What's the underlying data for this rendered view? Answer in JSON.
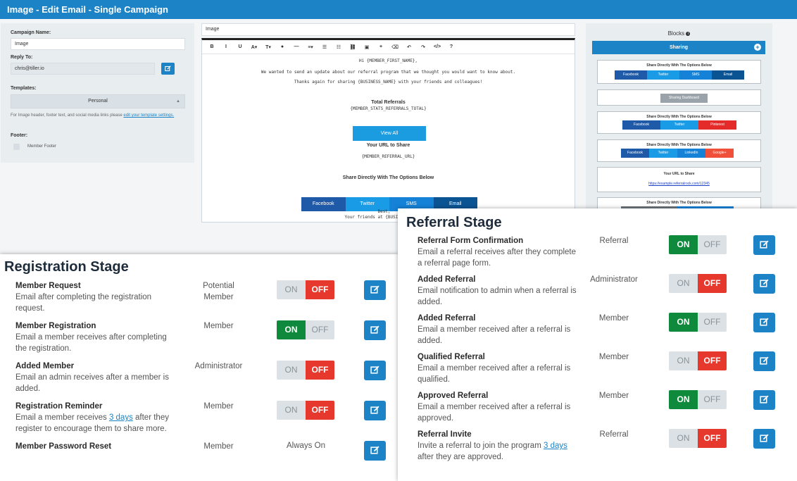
{
  "window": {
    "title": "Image - Edit Email - Single Campaign"
  },
  "settings": {
    "campaign_name_label": "Campaign Name:",
    "campaign_name_value": "Image",
    "reply_to_label": "Reply To:",
    "reply_to_value": "chris@tiller.io",
    "templates_label": "Templates:",
    "template_value": "Personal",
    "help_text": "For Image header, footer text, and social media links please ",
    "help_link": "edit your template settings.",
    "footer_label": "Footer:",
    "footer_checkbox_label": "Member Footer"
  },
  "editor": {
    "subject_value": "Image",
    "toolbar": [
      "B",
      "I",
      "U",
      "A▾",
      "T▾",
      "●",
      "—",
      "≡▾",
      "☰",
      "☷",
      "⛓",
      "▣",
      "+",
      "⌫",
      "↶",
      "↷",
      "</>",
      "?"
    ],
    "greeting": "Hi {MEMBER_FIRST_NAME},",
    "line1": "We wanted to send an update about our referral program that we thought you would want to know about.",
    "line2": "Thanks again for sharing {BUSINESS_NAME} with your friends and colleagues!",
    "total_referrals_title": "Total Referrals",
    "total_referrals_tag": "{MEMBER_STATS_REFERRALS_TOTAL}",
    "view_all_label": "View All",
    "url_title": "Your URL to Share",
    "url_tag": "{MEMBER_REFERRAL_URL}",
    "share_title": "Share Directly With The Options Below",
    "share_buttons": [
      {
        "label": "Facebook",
        "color": "#1f5aa8"
      },
      {
        "label": "Twitter",
        "color": "#1a9be6"
      },
      {
        "label": "SMS",
        "color": "#1582d8"
      },
      {
        "label": "Email",
        "color": "#0b5494"
      }
    ],
    "signoff": "Best,",
    "signature": "Your friends at {BUSINESS_NAME}"
  },
  "blocks": {
    "title": "Blocks",
    "section": "Sharing",
    "items": [
      {
        "title": "Share Directly With The Options Below",
        "buttons": [
          "Facebook",
          "Twitter",
          "SMS",
          "Email"
        ]
      },
      {
        "button": "Sharing Dashboard"
      },
      {
        "title": "Share Directly With The Options Below",
        "buttons": [
          "Facebook",
          "Twitter",
          "Pinterest"
        ]
      },
      {
        "title": "Share Directly With The Options Below",
        "buttons": [
          "Facebook",
          "Twitter",
          "LinkedIn",
          "Google+"
        ]
      },
      {
        "title": "Your URL to Share",
        "link": "https://example.referralrock.com/12345"
      },
      {
        "title": "Share Directly With The Options Below"
      }
    ]
  },
  "registration": {
    "title": "Registration Stage",
    "items": [
      {
        "name": "Member Request",
        "desc": "Email after completing the registration request.",
        "who": "Potential Member",
        "state": "off"
      },
      {
        "name": "Member Registration",
        "desc": "Email a member receives after completing the registration.",
        "who": "Member",
        "state": "on"
      },
      {
        "name": "Added Member",
        "desc": "Email an admin receives after a member is added.",
        "who": "Administrator",
        "state": "off"
      },
      {
        "name": "Registration Reminder",
        "desc_pre": "Email a member receives ",
        "desc_link": "3 days",
        "desc_post": " after they register to encourage them to share more.",
        "who": "Member",
        "state": "off"
      },
      {
        "name": "Member Password Reset",
        "who": "Member",
        "status_text": "Always On"
      }
    ]
  },
  "referral": {
    "title": "Referral Stage",
    "items": [
      {
        "name": "Referral Form Confirmation",
        "desc": "Email a referral receives after they complete a referral page form.",
        "who": "Referral",
        "state": "on"
      },
      {
        "name": "Added Referral",
        "desc": "Email notification to admin when a referral is added.",
        "who": "Administrator",
        "state": "off"
      },
      {
        "name": "Added Referral",
        "desc": "Email a member received after a referral is added.",
        "who": "Member",
        "state": "on"
      },
      {
        "name": "Qualified Referral",
        "desc": "Email a member received after a referral is qualified.",
        "who": "Member",
        "state": "off"
      },
      {
        "name": "Approved Referral",
        "desc": "Email a member received after a referral is approved.",
        "who": "Member",
        "state": "on"
      },
      {
        "name": "Referral Invite",
        "desc_pre": "Invite a referral to join the program ",
        "desc_link": "3 days",
        "desc_post": " after they are approved.",
        "who": "Referral",
        "state": "off"
      }
    ]
  },
  "toggle_labels": {
    "on": "ON",
    "off": "OFF"
  },
  "colors": {
    "brand": "#1b83c6",
    "on": "#0f8a3c",
    "off": "#e7382e",
    "inactive": "#dbe1e5"
  },
  "icons": {
    "edit": "edit-icon"
  }
}
